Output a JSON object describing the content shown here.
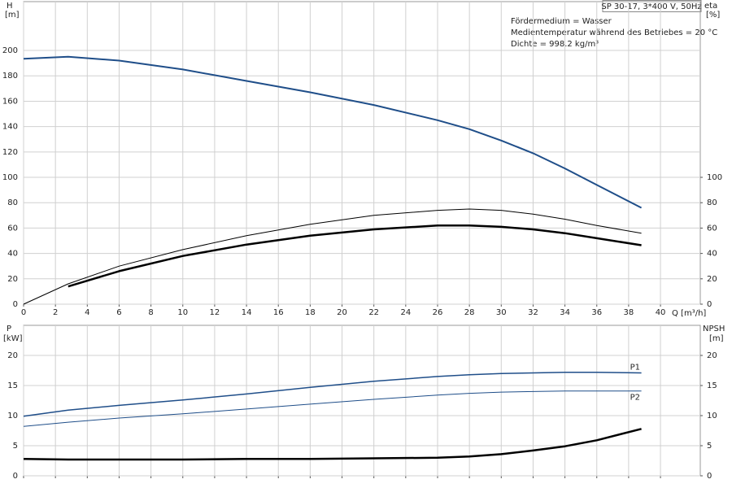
{
  "chart_data": [
    {
      "type": "line",
      "title": "SP 30-17, 3*400 V, 50Hz",
      "annotations": [
        "Fördermedium = Wasser",
        "Medientemperatur während des Betriebes = 20 °C",
        "Dichte = 998.2 kg/m³"
      ],
      "ylabel": "H",
      "yunit": "[m]",
      "y2label": "eta",
      "y2unit": "[%]",
      "xlabel": "Q [m³/h]",
      "x": [
        0,
        2.8,
        6,
        10,
        14,
        18,
        22,
        26,
        28,
        30,
        32,
        34,
        36,
        38.8
      ],
      "xlim": [
        0,
        42.5
      ],
      "xticks": [
        0,
        2,
        4,
        6,
        8,
        10,
        12,
        14,
        16,
        18,
        20,
        22,
        24,
        26,
        28,
        30,
        32,
        34,
        36,
        38,
        40
      ],
      "show_xtick_labels": true,
      "ylim": [
        0,
        238.5
      ],
      "yticks": [
        0,
        20,
        40,
        60,
        80,
        100,
        120,
        140,
        160,
        180,
        200
      ],
      "y2lim": [
        0,
        238.5
      ],
      "y2ticks": [
        0,
        20,
        40,
        60,
        80,
        100
      ],
      "grid": true,
      "series": [
        {
          "color": "#1f4e89",
          "width": 2,
          "axis": "y",
          "values": [
            193.5,
            195,
            192,
            185,
            176,
            167,
            157,
            145,
            138,
            129,
            119,
            107,
            94,
            76
          ]
        },
        {
          "color": "#000000",
          "width": 1,
          "axis": "y2",
          "values": [
            0,
            16,
            30,
            43,
            54,
            63,
            70,
            74,
            75,
            74,
            71,
            67,
            62,
            56
          ]
        },
        {
          "color": "#000000",
          "width": 2.5,
          "axis": "y2",
          "values": [
            null,
            14,
            26,
            38,
            47,
            54,
            59,
            62,
            62,
            61,
            59,
            56,
            52,
            46.5
          ]
        }
      ]
    },
    {
      "type": "line",
      "ylabel": "P",
      "yunit": "[kW]",
      "y2label": "NPSH",
      "y2unit": "[m]",
      "x": [
        0,
        2.8,
        6,
        10,
        14,
        18,
        22,
        26,
        28,
        30,
        32,
        34,
        36,
        38.8
      ],
      "xlim": [
        0,
        42.5
      ],
      "xticks": [
        0,
        2,
        4,
        6,
        8,
        10,
        12,
        14,
        16,
        18,
        20,
        22,
        24,
        26,
        28,
        30,
        32,
        34,
        36,
        38,
        40
      ],
      "show_xtick_labels": false,
      "ylim": [
        0,
        25
      ],
      "yticks": [
        0,
        5,
        10,
        15,
        20
      ],
      "y2lim": [
        0,
        25
      ],
      "y2ticks": [
        0,
        5,
        10,
        15,
        20
      ],
      "grid": true,
      "series": [
        {
          "name": "P1",
          "color": "#1f4e89",
          "width": 1.5,
          "axis": "y",
          "values": [
            9.9,
            10.9,
            11.7,
            12.6,
            13.6,
            14.7,
            15.7,
            16.5,
            16.8,
            17.0,
            17.1,
            17.2,
            17.2,
            17.1
          ]
        },
        {
          "name": "P2",
          "color": "#1f4e89",
          "width": 1,
          "axis": "y",
          "values": [
            8.2,
            8.9,
            9.6,
            10.3,
            11.1,
            11.9,
            12.7,
            13.4,
            13.7,
            13.9,
            14.0,
            14.1,
            14.1,
            14.1
          ]
        },
        {
          "color": "#000000",
          "width": 2.5,
          "axis": "y2",
          "values": [
            2.8,
            2.7,
            2.7,
            2.7,
            2.8,
            2.8,
            2.9,
            3.0,
            3.2,
            3.6,
            4.2,
            4.9,
            5.9,
            7.8
          ]
        }
      ]
    }
  ]
}
